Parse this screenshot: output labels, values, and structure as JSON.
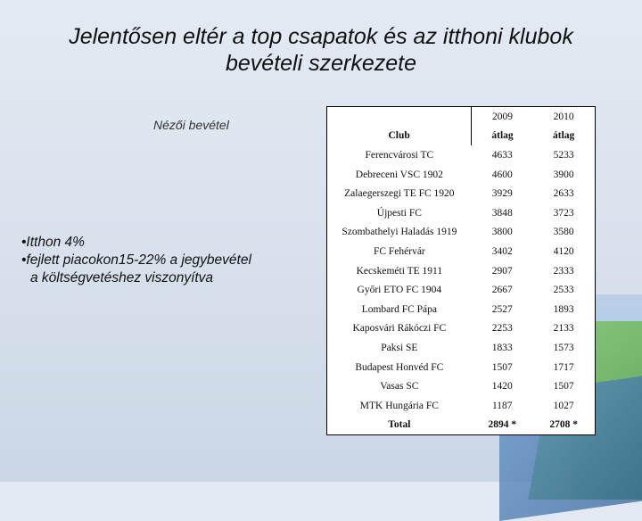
{
  "slide": {
    "title_line1": "Jelentősen eltér a top csapatok és az itthoni klubok",
    "title_line2": "bevételi szerkezete",
    "subhead": "Nézői bevétel",
    "bullets": [
      "•Itthon 4%",
      "•fejlett piacokon15-22% a jegybevétel",
      "a költségvetéshez viszonyítva"
    ]
  },
  "table": {
    "years": [
      "2009",
      "2010"
    ],
    "club_header": "Club",
    "avg_labels": [
      "átlag",
      "átlag"
    ],
    "rows": [
      {
        "club": "Ferencvárosi TC",
        "v2009": "4633",
        "v2010": "5233"
      },
      {
        "club": "Debreceni VSC 1902",
        "v2009": "4600",
        "v2010": "3900"
      },
      {
        "club": "Zalaegerszegi TE FC 1920",
        "v2009": "3929",
        "v2010": "2633"
      },
      {
        "club": "Újpesti FC",
        "v2009": "3848",
        "v2010": "3723"
      },
      {
        "club": "Szombathelyi Haladás 1919",
        "v2009": "3800",
        "v2010": "3580"
      },
      {
        "club": "FC Fehérvár",
        "v2009": "3402",
        "v2010": "4120"
      },
      {
        "club": "Kecskeméti TE 1911",
        "v2009": "2907",
        "v2010": "2333"
      },
      {
        "club": "Győri ETO FC 1904",
        "v2009": "2667",
        "v2010": "2533"
      },
      {
        "club": "Lombard FC Pápa",
        "v2009": "2527",
        "v2010": "1893"
      },
      {
        "club": "Kaposvári Rákóczi FC",
        "v2009": "2253",
        "v2010": "2133"
      },
      {
        "club": "Paksi SE",
        "v2009": "1833",
        "v2010": "1573"
      },
      {
        "club": "Budapest Honvéd FC",
        "v2009": "1507",
        "v2010": "1717"
      },
      {
        "club": "Vasas SC",
        "v2009": "1420",
        "v2010": "1507"
      },
      {
        "club": "MTK Hungária FC",
        "v2009": "1187",
        "v2010": "1027"
      }
    ],
    "total": {
      "label": "Total",
      "v2009": "2894 *",
      "v2010": "2708 *"
    }
  }
}
